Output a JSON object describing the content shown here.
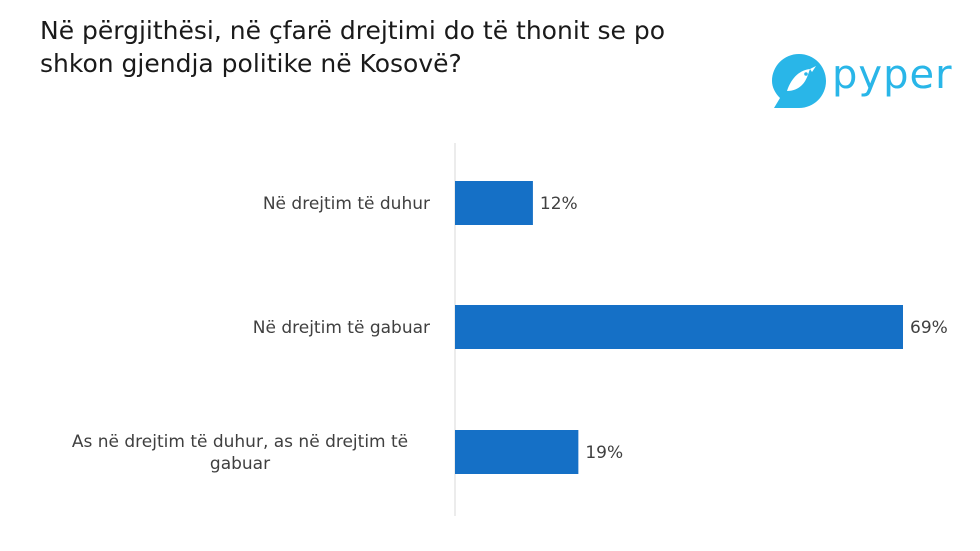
{
  "title": "Në përgjithësi, në çfarë drejtimi do të thonit se po shkon gjendja politike në Kosovë?",
  "logo": {
    "text": "pyper",
    "icon": "bird-icon",
    "color": "#29b6e8"
  },
  "chart_data": {
    "type": "bar",
    "orientation": "horizontal",
    "categories": [
      "Në drejtim të duhur",
      "Në drejtim të gabuar",
      "As në drejtim të duhur, as në drejtim të gabuar"
    ],
    "category_lines": [
      [
        "Në drejtim të duhur"
      ],
      [
        "Në drejtim të gabuar"
      ],
      [
        "As në drejtim të duhur, as në drejtim të",
        "gabuar"
      ]
    ],
    "values": [
      12,
      69,
      19
    ],
    "value_labels": [
      "12%",
      "69%",
      "19%"
    ],
    "xlim": [
      0,
      69
    ],
    "bar_color": "#1570c6",
    "axis_color": "#d9d9d9",
    "grid": false,
    "legend": "none"
  }
}
